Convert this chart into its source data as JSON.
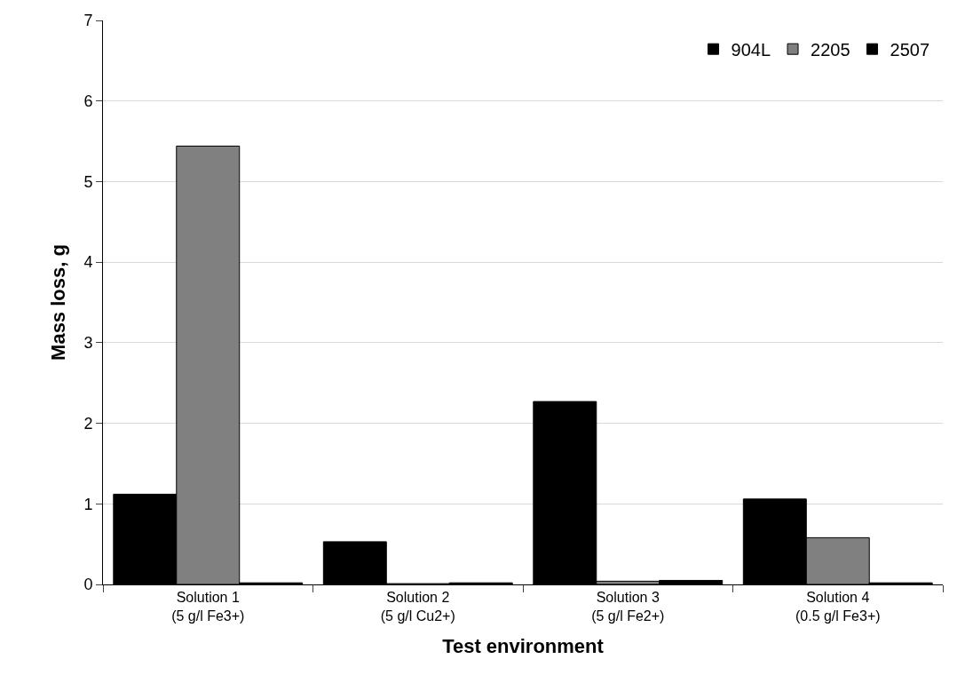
{
  "chart_data": {
    "type": "bar",
    "xlabel": "Test environment",
    "ylabel": "Mass loss, g",
    "categories": [
      "Solution 1\n(5 g/l Fe3+)",
      "Solution 2\n(5 g/l Cu2+)",
      "Solution 3\n(5 g/l Fe2+)",
      "Solution 4\n(0.5 g/l Fe3+)"
    ],
    "series": [
      {
        "name": "904L",
        "color": "#000000",
        "values": [
          1.12,
          0.53,
          2.27,
          1.06
        ]
      },
      {
        "name": "2205",
        "color": "#808080",
        "values": [
          5.44,
          0.01,
          0.04,
          0.58
        ]
      },
      {
        "name": "2507",
        "color": "#000000",
        "values": [
          0.02,
          0.02,
          0.05,
          0.02
        ]
      }
    ],
    "ylim": [
      0,
      7
    ],
    "yticks": [
      0,
      1,
      2,
      3,
      4,
      5,
      6,
      7
    ],
    "grid": "y",
    "legend": "top right"
  }
}
